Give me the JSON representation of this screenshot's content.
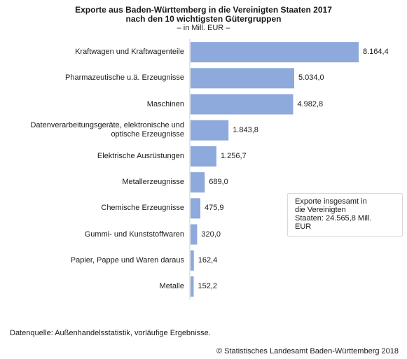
{
  "chart_data": {
    "type": "bar",
    "orientation": "horizontal",
    "title_line1": "Exporte aus Baden-Württemberg in die Vereinigten Staaten 2017",
    "title_line2": "nach den 10 wichtigsten Gütergruppen",
    "subtitle": "– in Mill. EUR –",
    "categories": [
      "Kraftwagen und Kraftwagenteile",
      "Pharmazeutische u.ä. Erzeugnisse",
      "Maschinen",
      "Datenverarbeitungsgeräte, elektronische und optische Erzeugnisse",
      "Elektrische Ausrüstungen",
      "Metallerzeugnisse",
      "Chemische Erzeugnisse",
      "Gummi- und Kunststoffwaren",
      "Papier, Pappe und Waren daraus",
      "Metalle"
    ],
    "category_lines": [
      [
        "Kraftwagen und Kraftwagenteile"
      ],
      [
        "Pharmazeutische u.ä. Erzeugnisse"
      ],
      [
        "Maschinen"
      ],
      [
        "Datenverarbeitungsgeräte, elektronische und",
        "optische Erzeugnisse"
      ],
      [
        "Elektrische Ausrüstungen"
      ],
      [
        "Metallerzeugnisse"
      ],
      [
        "Chemische Erzeugnisse"
      ],
      [
        "Gummi- und Kunststoffwaren"
      ],
      [
        "Papier, Pappe und Waren daraus"
      ],
      [
        "Metalle"
      ]
    ],
    "values": [
      8164.4,
      5034.0,
      4982.8,
      1843.8,
      1256.7,
      689.0,
      475.9,
      320.0,
      162.4,
      152.2
    ],
    "value_labels": [
      "8.164,4",
      "5.034,0",
      "4.982,8",
      "1.843,8",
      "1.256,7",
      "689,0",
      "475,9",
      "320,0",
      "162,4",
      "152,2"
    ],
    "xlim": [
      0,
      9000
    ],
    "bar_color": "#8ea9db",
    "axis_color": "#cccccc",
    "grid": false,
    "legend": "none"
  },
  "annotation": {
    "line1": "Exporte insgesamt in",
    "line2": "die Vereinigten",
    "line3": "Staaten: 24.565,8 Mill.",
    "line4": "EUR"
  },
  "footer": {
    "source": "Datenquelle: Außenhandelsstatistik, vorläufige Ergebnisse.",
    "copyright": "© Statistisches Landesamt Baden-Württemberg 2018"
  }
}
